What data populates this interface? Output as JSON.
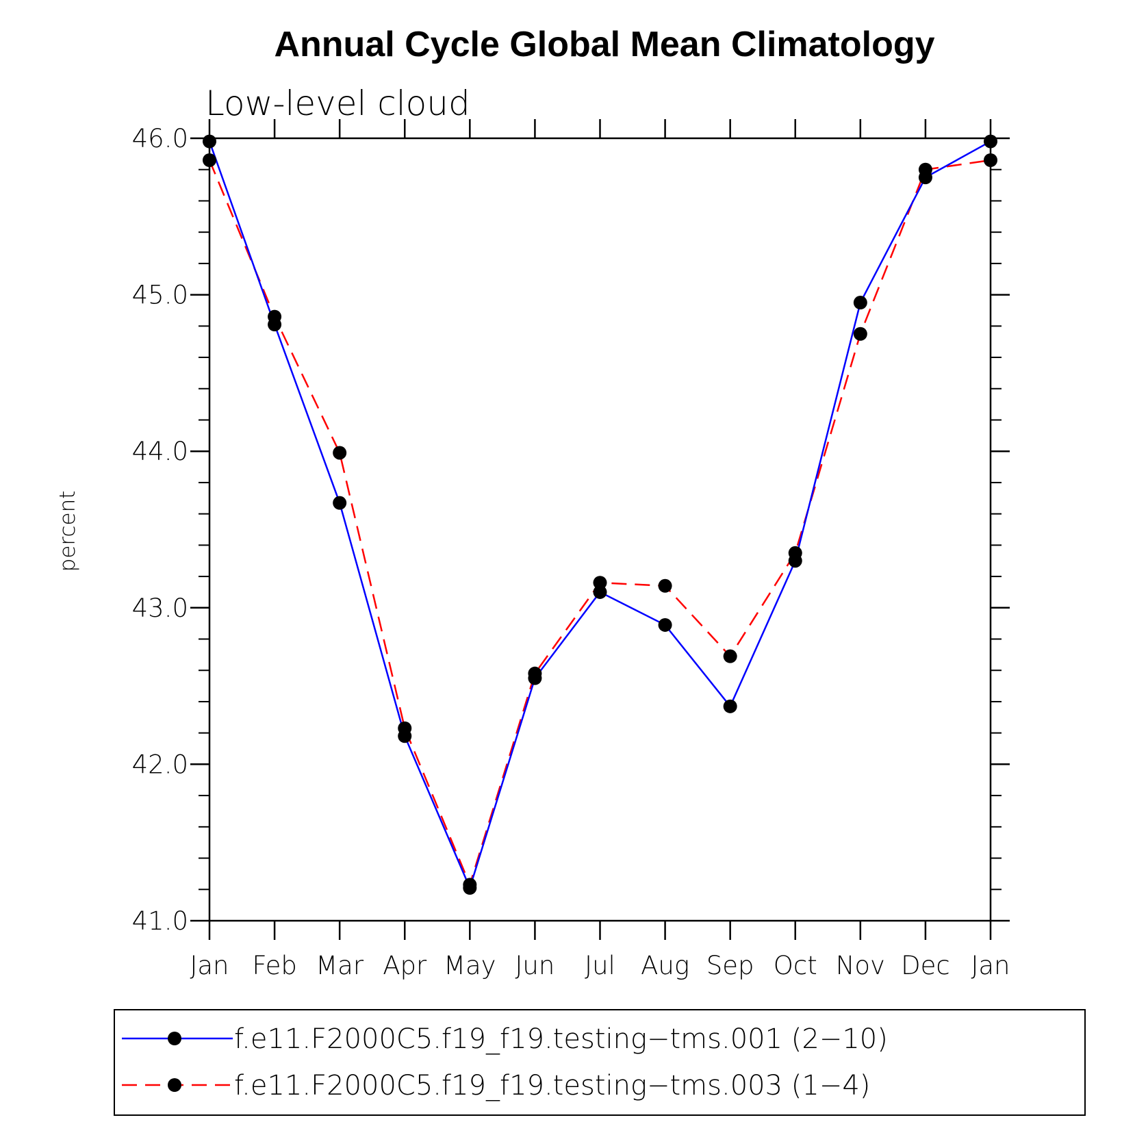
{
  "chart_data": {
    "type": "line",
    "title": "Annual Cycle Global Mean Climatology",
    "subtitle": "Low-level cloud",
    "xlabel": "",
    "ylabel": "percent",
    "categories": [
      "Jan",
      "Feb",
      "Mar",
      "Apr",
      "May",
      "Jun",
      "Jul",
      "Aug",
      "Sep",
      "Oct",
      "Nov",
      "Dec",
      "Jan"
    ],
    "ylim": [
      41.0,
      46.0
    ],
    "yticks": [
      "41.0",
      "42.0",
      "43.0",
      "44.0",
      "45.0",
      "46.0"
    ],
    "grid": false,
    "legend_position": "bottom",
    "series": [
      {
        "name": "f.e11.F2000C5.f19_f19.testing−tms.001 (2−10)",
        "color": "#0000ff",
        "style": "solid",
        "values": [
          45.98,
          44.81,
          43.67,
          42.18,
          41.21,
          42.55,
          43.1,
          42.89,
          42.37,
          43.3,
          44.95,
          45.75,
          45.98
        ]
      },
      {
        "name": "f.e11.F2000C5.f19_f19.testing−tms.003 (1−4)",
        "color": "#ff0000",
        "style": "dashed",
        "values": [
          45.86,
          44.86,
          43.99,
          42.23,
          41.23,
          42.58,
          43.16,
          43.14,
          42.69,
          43.35,
          44.75,
          45.8,
          45.86
        ]
      }
    ]
  }
}
